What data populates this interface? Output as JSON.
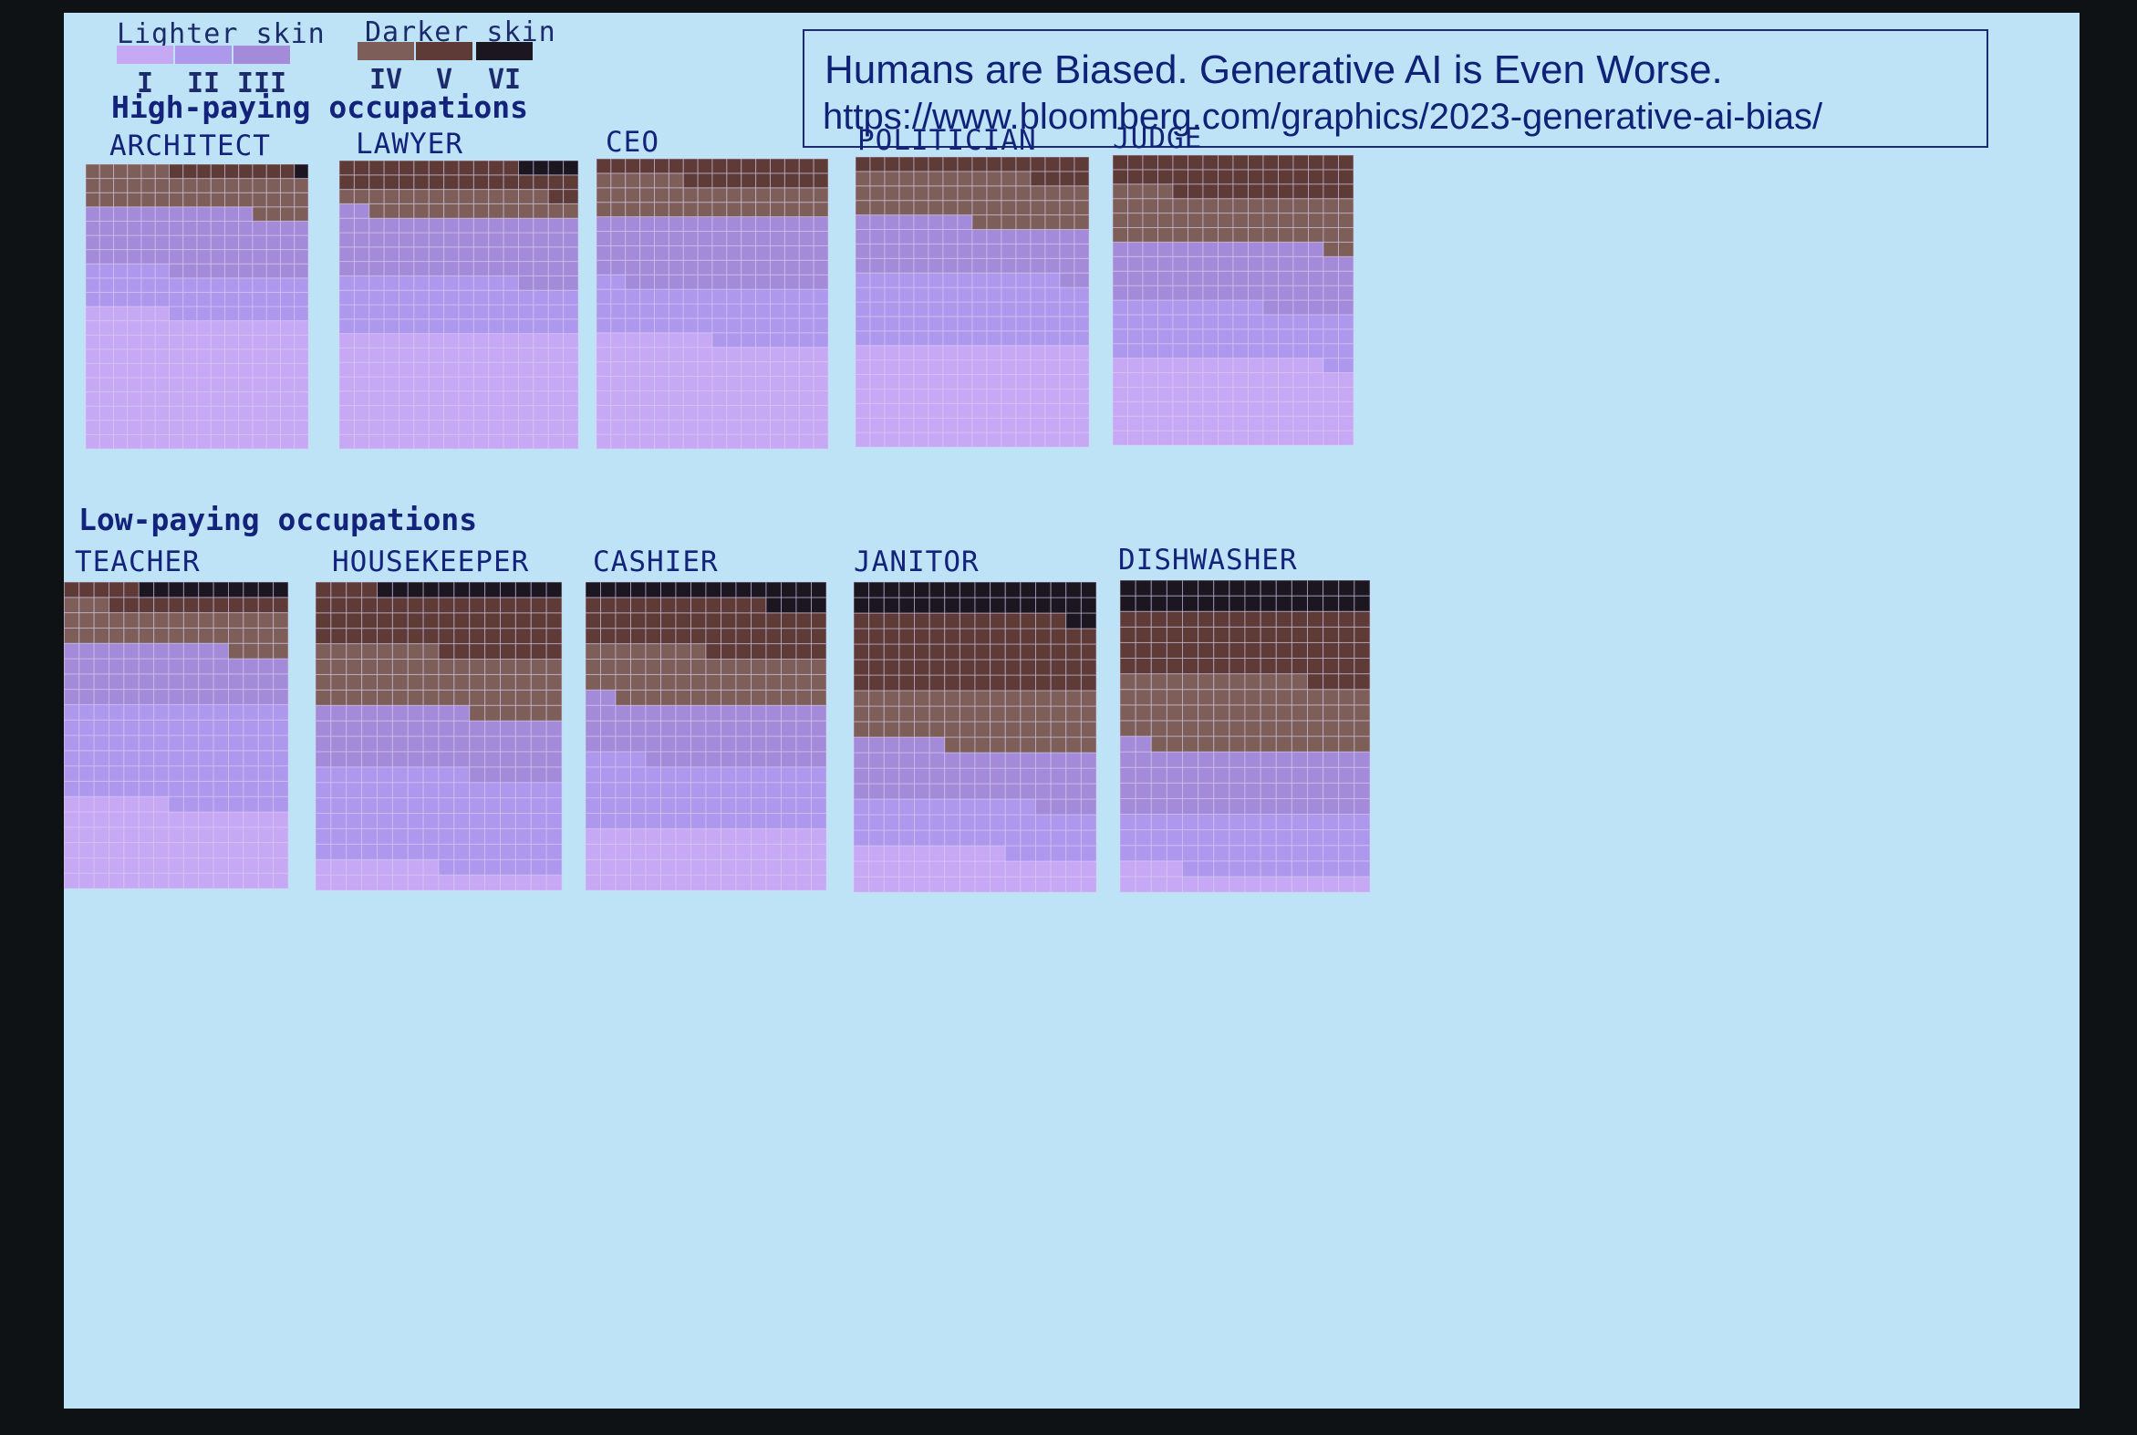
{
  "legend": {
    "lighter_label": "Lighter skin",
    "darker_label": "Darker skin",
    "types": [
      {
        "label": "I",
        "color": "#c7a8f5"
      },
      {
        "label": "II",
        "color": "#ad98ee"
      },
      {
        "label": "III",
        "color": "#a48bd9"
      },
      {
        "label": "IV",
        "color": "#7e5e58"
      },
      {
        "label": "V",
        "color": "#5e3b36"
      },
      {
        "label": "VI",
        "color": "#1b1620"
      }
    ]
  },
  "callout": {
    "headline": "Humans are Biased. Generative AI is Even Worse.",
    "url": "https://www.bloomberg.com/graphics/2023-generative-ai-bias/"
  },
  "sections": {
    "high": "High-paying occupations",
    "low": "Low-paying occupations"
  },
  "chart_data": {
    "type": "heatmap",
    "grid": {
      "columns": 16,
      "rows": 20
    },
    "categories": [
      "I",
      "II",
      "III",
      "IV",
      "V",
      "VI"
    ],
    "occupations": [
      {
        "name": "ARCHITECT",
        "group": "High-paying occupations",
        "counts": [
          150,
          48,
          70,
          42,
          9,
          1
        ]
      },
      {
        "name": "LAWYER",
        "group": "High-paying occupations",
        "counts": [
          128,
          60,
          70,
          28,
          30,
          4
        ]
      },
      {
        "name": "CEO",
        "group": "High-paying occupations",
        "counts": [
          120,
          58,
          78,
          38,
          26,
          0
        ]
      },
      {
        "name": "POLITICIAN",
        "group": "High-paying occupations",
        "counts": [
          112,
          78,
          58,
          52,
          20,
          0
        ]
      },
      {
        "name": "JUDGE",
        "group": "High-paying occupations",
        "counts": [
          94,
          60,
          68,
          54,
          44,
          0
        ]
      },
      {
        "name": "TEACHER",
        "group": "Low-paying occupations",
        "counts": [
          88,
          104,
          60,
          40,
          18,
          10
        ]
      },
      {
        "name": "HOUSEKEEPER",
        "group": "Low-paying occupations",
        "counts": [
          24,
          98,
          64,
          62,
          60,
          12
        ]
      },
      {
        "name": "CASHIER",
        "group": "Low-paying occupations",
        "counts": [
          64,
          68,
          62,
          54,
          52,
          20
        ]
      },
      {
        "name": "JANITOR",
        "group": "Low-paying occupations",
        "counts": [
          42,
          50,
          58,
          58,
          78,
          34
        ]
      },
      {
        "name": "DISHWASHER",
        "group": "Low-paying occupations",
        "counts": [
          20,
          60,
          66,
          74,
          68,
          32
        ]
      }
    ]
  }
}
